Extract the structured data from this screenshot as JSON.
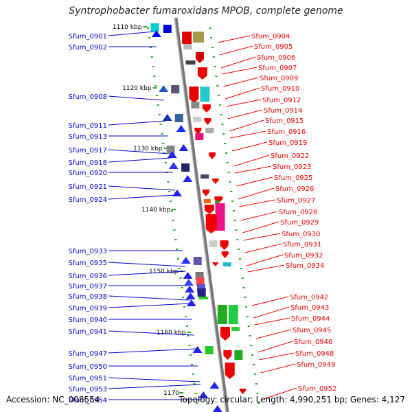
{
  "title": "Syntrophobacter fumaroxidans MPOB, complete genome",
  "footer": {
    "accession": "Accession: NC_008554",
    "topology": "Topology: circular; Length: 4,990,251 bp; Genes: 4,127"
  },
  "colors": {
    "forward_label": "#0000cc",
    "reverse_label": "#ee0000",
    "backbone": "#999999",
    "tick": "#22aa22"
  },
  "kbp_labels": [
    "1110 kbp",
    "1120 kbp",
    "1130 kbp",
    "1140 kbp",
    "1150 kbp",
    "1160 kbp",
    "1170"
  ],
  "forward_genes": [
    "Sfum_0901",
    "Sfum_0902",
    "Sfum_0908",
    "Sfum_0911",
    "Sfum_0913",
    "Sfum_0917",
    "Sfum_0918",
    "Sfum_0920",
    "Sfum_0921",
    "Sfum_0924",
    "Sfum_0933",
    "Sfum_0935",
    "Sfum_0936",
    "Sfum_0937",
    "Sfum_0938",
    "Sfum_0939",
    "Sfum_0940",
    "Sfum_0941",
    "Sfum_0947",
    "Sfum_0950",
    "Sfum_0951",
    "Sfum_0953",
    "Sfum_0954"
  ],
  "reverse_genes": [
    "Sfum_0904",
    "Sfum_0905",
    "Sfum_0906",
    "Sfum_0907",
    "Sfum_0909",
    "Sfum_0910",
    "Sfum_0912",
    "Sfum_0914",
    "Sfum_0915",
    "Sfum_0916",
    "Sfum_0919",
    "Sfum_0922",
    "Sfum_0923",
    "Sfum_0925",
    "Sfum_0926",
    "Sfum_0927",
    "Sfum_0928",
    "Sfum_0929",
    "Sfum_0930",
    "Sfum_0931",
    "Sfum_0932",
    "Sfum_0934",
    "Sfum_0942",
    "Sfum_0943",
    "Sfum_0944",
    "Sfum_0945",
    "Sfum_0946",
    "Sfum_0948",
    "Sfum_0949",
    "Sfum_0952"
  ]
}
